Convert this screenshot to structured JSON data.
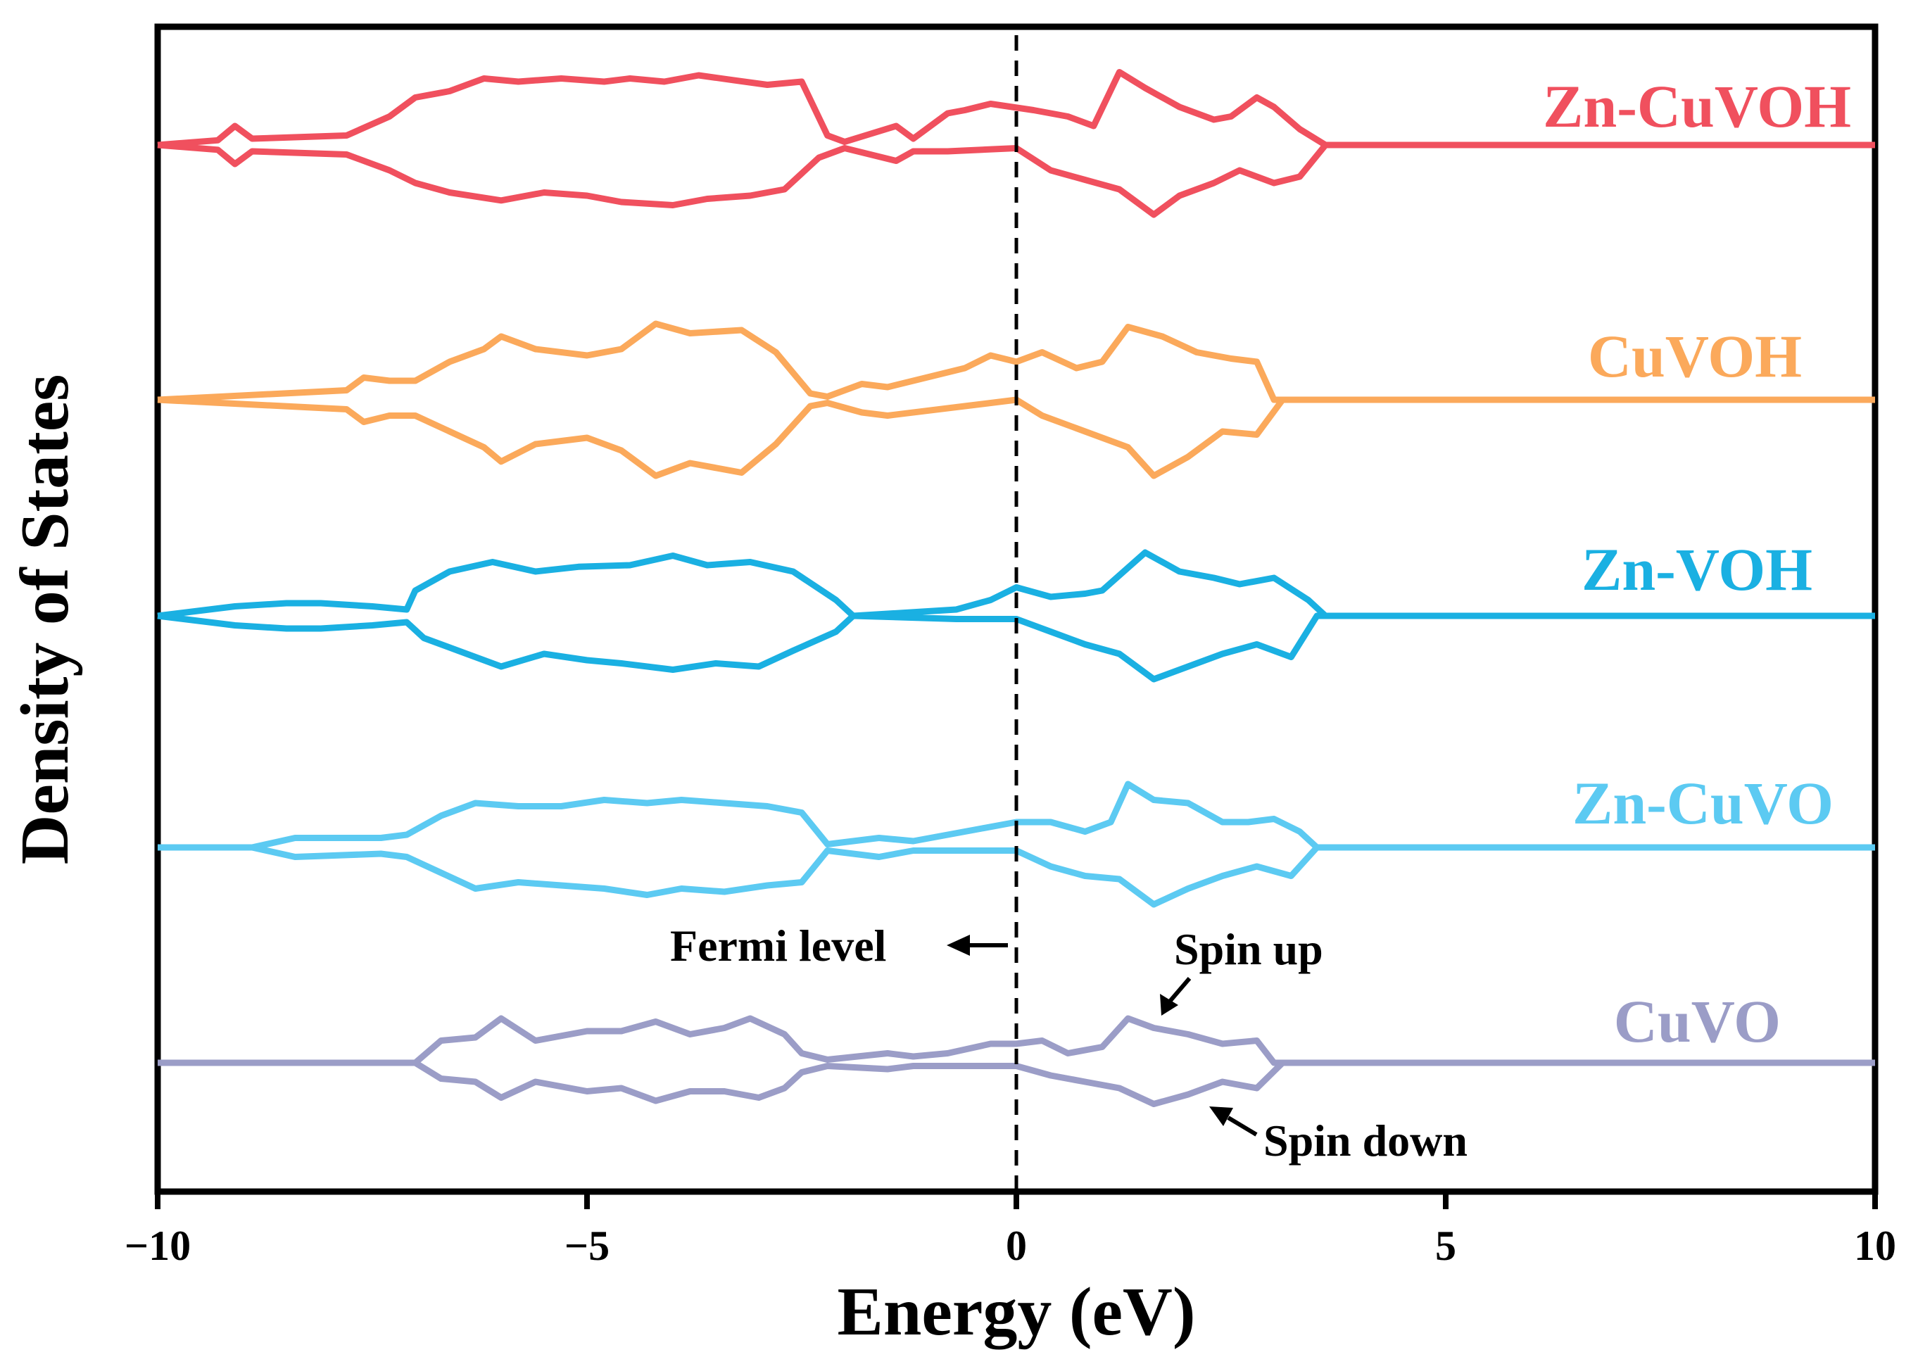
{
  "chart_data": {
    "type": "line",
    "title": "",
    "xlabel": "Energy (eV)",
    "ylabel": "Density of States",
    "xlim": [
      -10,
      10
    ],
    "xticks": [
      -10,
      -5,
      0,
      5,
      10
    ],
    "xtick_labels": [
      "−10",
      "−5",
      "0",
      "5",
      "10"
    ],
    "fermi_level": 0,
    "series": [
      {
        "name": "Zn-CuVOH",
        "color": "#f0505e",
        "points": [
          [
            -9.3,
            0.15
          ],
          [
            -9.1,
            0.6
          ],
          [
            -8.9,
            0.2
          ],
          [
            -7.8,
            0.3
          ],
          [
            -7.3,
            0.9
          ],
          [
            -7.2,
            1.1
          ],
          [
            -7.0,
            1.5
          ],
          [
            -6.6,
            1.7
          ],
          [
            -6.2,
            2.1
          ],
          [
            -5.8,
            2.0
          ],
          [
            -5.3,
            2.1
          ],
          [
            -4.8,
            2.0
          ],
          [
            -4.5,
            2.1
          ],
          [
            -4.1,
            2.0
          ],
          [
            -3.7,
            2.2
          ],
          [
            -3.3,
            2.05
          ],
          [
            -2.9,
            1.9
          ],
          [
            -2.5,
            2.0
          ],
          [
            -2.2,
            0.3
          ],
          [
            -2.0,
            0.1
          ],
          [
            -1.4,
            0.6
          ],
          [
            -1.2,
            0.2
          ],
          [
            -0.8,
            1.0
          ],
          [
            -0.6,
            1.1
          ],
          [
            -0.3,
            1.3
          ],
          [
            0.2,
            1.1
          ],
          [
            0.6,
            0.9
          ],
          [
            0.9,
            0.6
          ],
          [
            1.2,
            2.3
          ],
          [
            1.5,
            1.8
          ],
          [
            1.9,
            1.2
          ],
          [
            2.3,
            0.8
          ],
          [
            2.5,
            0.9
          ],
          [
            2.8,
            1.5
          ],
          [
            3.0,
            1.2
          ],
          [
            3.3,
            0.5
          ],
          [
            3.6,
            0.0
          ]
        ],
        "points_down": [
          [
            -9.3,
            0.15
          ],
          [
            -9.1,
            0.6
          ],
          [
            -8.9,
            0.2
          ],
          [
            -7.8,
            0.3
          ],
          [
            -7.3,
            0.8
          ],
          [
            -7.0,
            1.2
          ],
          [
            -6.6,
            1.5
          ],
          [
            -6.0,
            1.75
          ],
          [
            -5.5,
            1.5
          ],
          [
            -5.0,
            1.6
          ],
          [
            -4.6,
            1.8
          ],
          [
            -4.0,
            1.9
          ],
          [
            -3.6,
            1.7
          ],
          [
            -3.1,
            1.6
          ],
          [
            -2.7,
            1.4
          ],
          [
            -2.3,
            0.4
          ],
          [
            -2.0,
            0.1
          ],
          [
            -1.4,
            0.5
          ],
          [
            -1.2,
            0.2
          ],
          [
            -0.8,
            0.2
          ],
          [
            0.0,
            0.1
          ],
          [
            0.4,
            0.8
          ],
          [
            0.8,
            1.1
          ],
          [
            1.2,
            1.4
          ],
          [
            1.6,
            2.2
          ],
          [
            1.9,
            1.6
          ],
          [
            2.3,
            1.2
          ],
          [
            2.6,
            0.8
          ],
          [
            3.0,
            1.2
          ],
          [
            3.3,
            1.0
          ],
          [
            3.6,
            0.0
          ]
        ]
      },
      {
        "name": "CuVOH",
        "color": "#fba95b",
        "points": [
          [
            -7.8,
            0.3
          ],
          [
            -7.6,
            0.7
          ],
          [
            -7.3,
            0.6
          ],
          [
            -7.0,
            0.6
          ],
          [
            -6.6,
            1.2
          ],
          [
            -6.2,
            1.6
          ],
          [
            -6.0,
            2.0
          ],
          [
            -5.6,
            1.6
          ],
          [
            -5.0,
            1.4
          ],
          [
            -4.6,
            1.6
          ],
          [
            -4.2,
            2.4
          ],
          [
            -3.8,
            2.1
          ],
          [
            -3.2,
            2.2
          ],
          [
            -2.8,
            1.5
          ],
          [
            -2.4,
            0.2
          ],
          [
            -2.2,
            0.1
          ],
          [
            -1.8,
            0.5
          ],
          [
            -1.5,
            0.4
          ],
          [
            -0.6,
            1.0
          ],
          [
            -0.3,
            1.4
          ],
          [
            0.0,
            1.2
          ],
          [
            0.3,
            1.5
          ],
          [
            0.7,
            1.0
          ],
          [
            1.0,
            1.2
          ],
          [
            1.3,
            2.3
          ],
          [
            1.7,
            2.0
          ],
          [
            2.1,
            1.5
          ],
          [
            2.5,
            1.3
          ],
          [
            2.8,
            1.2
          ],
          [
            3.0,
            0.0
          ]
        ],
        "points_down": [
          [
            -7.8,
            0.3
          ],
          [
            -7.6,
            0.7
          ],
          [
            -7.3,
            0.5
          ],
          [
            -7.0,
            0.5
          ],
          [
            -6.6,
            1.0
          ],
          [
            -6.2,
            1.5
          ],
          [
            -6.0,
            1.95
          ],
          [
            -5.6,
            1.4
          ],
          [
            -5.0,
            1.2
          ],
          [
            -4.6,
            1.6
          ],
          [
            -4.2,
            2.4
          ],
          [
            -3.8,
            2.0
          ],
          [
            -3.2,
            2.3
          ],
          [
            -2.8,
            1.4
          ],
          [
            -2.4,
            0.2
          ],
          [
            -2.2,
            0.1
          ],
          [
            -1.8,
            0.4
          ],
          [
            -1.5,
            0.5
          ],
          [
            -0.6,
            0.2
          ],
          [
            0.0,
            0.0
          ],
          [
            0.3,
            0.5
          ],
          [
            0.7,
            0.9
          ],
          [
            1.0,
            1.2
          ],
          [
            1.3,
            1.5
          ],
          [
            1.6,
            2.4
          ],
          [
            2.0,
            1.8
          ],
          [
            2.4,
            1.0
          ],
          [
            2.8,
            1.1
          ],
          [
            3.1,
            0.0
          ]
        ]
      },
      {
        "name": "Zn-VOH",
        "color": "#1ab0e2",
        "points": [
          [
            -9.1,
            0.3
          ],
          [
            -8.5,
            0.4
          ],
          [
            -8.1,
            0.4
          ],
          [
            -7.5,
            0.3
          ],
          [
            -7.1,
            0.2
          ],
          [
            -7.0,
            0.8
          ],
          [
            -6.6,
            1.4
          ],
          [
            -6.1,
            1.7
          ],
          [
            -5.6,
            1.4
          ],
          [
            -5.1,
            1.55
          ],
          [
            -4.5,
            1.6
          ],
          [
            -4.0,
            1.9
          ],
          [
            -3.6,
            1.6
          ],
          [
            -3.1,
            1.7
          ],
          [
            -2.6,
            1.4
          ],
          [
            -2.1,
            0.5
          ],
          [
            -1.9,
            0.0
          ],
          [
            -0.7,
            0.2
          ],
          [
            -0.3,
            0.5
          ],
          [
            0.0,
            0.9
          ],
          [
            0.4,
            0.6
          ],
          [
            0.8,
            0.7
          ],
          [
            1.0,
            0.8
          ],
          [
            1.5,
            2.0
          ],
          [
            1.9,
            1.4
          ],
          [
            2.3,
            1.2
          ],
          [
            2.6,
            1.0
          ],
          [
            3.0,
            1.2
          ],
          [
            3.4,
            0.5
          ],
          [
            3.6,
            0.0
          ]
        ],
        "points_down": [
          [
            -9.1,
            0.3
          ],
          [
            -8.5,
            0.4
          ],
          [
            -8.1,
            0.4
          ],
          [
            -7.5,
            0.3
          ],
          [
            -7.1,
            0.2
          ],
          [
            -6.9,
            0.7
          ],
          [
            -6.5,
            1.1
          ],
          [
            -6.0,
            1.6
          ],
          [
            -5.5,
            1.2
          ],
          [
            -5.0,
            1.4
          ],
          [
            -4.6,
            1.5
          ],
          [
            -4.0,
            1.7
          ],
          [
            -3.5,
            1.5
          ],
          [
            -3.0,
            1.6
          ],
          [
            -2.6,
            1.1
          ],
          [
            -2.1,
            0.5
          ],
          [
            -1.9,
            0.0
          ],
          [
            -0.7,
            0.1
          ],
          [
            0.0,
            0.1
          ],
          [
            0.4,
            0.5
          ],
          [
            0.8,
            0.9
          ],
          [
            1.2,
            1.2
          ],
          [
            1.6,
            2.0
          ],
          [
            2.0,
            1.6
          ],
          [
            2.4,
            1.2
          ],
          [
            2.8,
            0.9
          ],
          [
            3.2,
            1.3
          ],
          [
            3.5,
            0.0
          ]
        ]
      },
      {
        "name": "Zn-CuVO",
        "color": "#5ccaf2",
        "points": [
          [
            -8.9,
            0.0
          ],
          [
            -8.4,
            0.3
          ],
          [
            -7.4,
            0.3
          ],
          [
            -7.1,
            0.4
          ],
          [
            -6.7,
            1.0
          ],
          [
            -6.3,
            1.4
          ],
          [
            -5.8,
            1.3
          ],
          [
            -5.3,
            1.3
          ],
          [
            -4.8,
            1.5
          ],
          [
            -4.3,
            1.4
          ],
          [
            -3.9,
            1.5
          ],
          [
            -3.4,
            1.4
          ],
          [
            -2.9,
            1.3
          ],
          [
            -2.5,
            1.1
          ],
          [
            -2.2,
            0.1
          ],
          [
            -1.6,
            0.3
          ],
          [
            -1.2,
            0.2
          ],
          [
            -0.8,
            0.4
          ],
          [
            -0.4,
            0.6
          ],
          [
            0.0,
            0.8
          ],
          [
            0.4,
            0.8
          ],
          [
            0.8,
            0.5
          ],
          [
            1.1,
            0.8
          ],
          [
            1.3,
            2.0
          ],
          [
            1.6,
            1.5
          ],
          [
            2.0,
            1.4
          ],
          [
            2.4,
            0.8
          ],
          [
            2.7,
            0.8
          ],
          [
            3.0,
            0.9
          ],
          [
            3.3,
            0.5
          ],
          [
            3.5,
            0.0
          ]
        ],
        "points_down": [
          [
            -8.9,
            0.0
          ],
          [
            -8.4,
            0.3
          ],
          [
            -7.4,
            0.2
          ],
          [
            -7.1,
            0.3
          ],
          [
            -6.7,
            0.8
          ],
          [
            -6.3,
            1.3
          ],
          [
            -5.8,
            1.1
          ],
          [
            -5.3,
            1.2
          ],
          [
            -4.8,
            1.3
          ],
          [
            -4.3,
            1.5
          ],
          [
            -3.9,
            1.3
          ],
          [
            -3.4,
            1.4
          ],
          [
            -2.9,
            1.2
          ],
          [
            -2.5,
            1.1
          ],
          [
            -2.2,
            0.1
          ],
          [
            -1.6,
            0.3
          ],
          [
            -1.2,
            0.1
          ],
          [
            -0.8,
            0.1
          ],
          [
            0.0,
            0.1
          ],
          [
            0.4,
            0.6
          ],
          [
            0.8,
            0.9
          ],
          [
            1.2,
            1.0
          ],
          [
            1.6,
            1.8
          ],
          [
            2.0,
            1.3
          ],
          [
            2.4,
            0.9
          ],
          [
            2.8,
            0.6
          ],
          [
            3.2,
            0.9
          ],
          [
            3.5,
            0.0
          ]
        ]
      },
      {
        "name": "CuVO",
        "color": "#9b9dc7",
        "points": [
          [
            -7.0,
            0.0
          ],
          [
            -6.7,
            0.7
          ],
          [
            -6.3,
            0.8
          ],
          [
            -6.0,
            1.4
          ],
          [
            -5.6,
            0.7
          ],
          [
            -5.0,
            1.0
          ],
          [
            -4.6,
            1.0
          ],
          [
            -4.2,
            1.3
          ],
          [
            -3.8,
            0.9
          ],
          [
            -3.4,
            1.1
          ],
          [
            -3.1,
            1.4
          ],
          [
            -2.7,
            0.9
          ],
          [
            -2.5,
            0.3
          ],
          [
            -2.2,
            0.1
          ],
          [
            -1.5,
            0.3
          ],
          [
            -1.2,
            0.2
          ],
          [
            -0.8,
            0.3
          ],
          [
            -0.3,
            0.6
          ],
          [
            0.0,
            0.6
          ],
          [
            0.3,
            0.7
          ],
          [
            0.6,
            0.3
          ],
          [
            1.0,
            0.5
          ],
          [
            1.3,
            1.4
          ],
          [
            1.6,
            1.1
          ],
          [
            2.0,
            0.9
          ],
          [
            2.4,
            0.6
          ],
          [
            2.8,
            0.7
          ],
          [
            3.0,
            0.0
          ]
        ],
        "points_down": [
          [
            -7.0,
            0.0
          ],
          [
            -6.7,
            0.5
          ],
          [
            -6.3,
            0.6
          ],
          [
            -6.0,
            1.1
          ],
          [
            -5.6,
            0.6
          ],
          [
            -5.0,
            0.9
          ],
          [
            -4.6,
            0.8
          ],
          [
            -4.2,
            1.2
          ],
          [
            -3.8,
            0.9
          ],
          [
            -3.4,
            0.9
          ],
          [
            -3.0,
            1.1
          ],
          [
            -2.7,
            0.8
          ],
          [
            -2.5,
            0.3
          ],
          [
            -2.2,
            0.1
          ],
          [
            -1.5,
            0.2
          ],
          [
            -1.2,
            0.1
          ],
          [
            -0.8,
            0.1
          ],
          [
            0.0,
            0.1
          ],
          [
            0.4,
            0.4
          ],
          [
            0.8,
            0.6
          ],
          [
            1.2,
            0.8
          ],
          [
            1.6,
            1.3
          ],
          [
            2.0,
            1.0
          ],
          [
            2.4,
            0.6
          ],
          [
            2.8,
            0.8
          ],
          [
            3.1,
            0.0
          ]
        ]
      }
    ],
    "annotations": {
      "fermi": "Fermi level",
      "spin_up": "Spin up",
      "spin_down": "Spin down"
    }
  }
}
